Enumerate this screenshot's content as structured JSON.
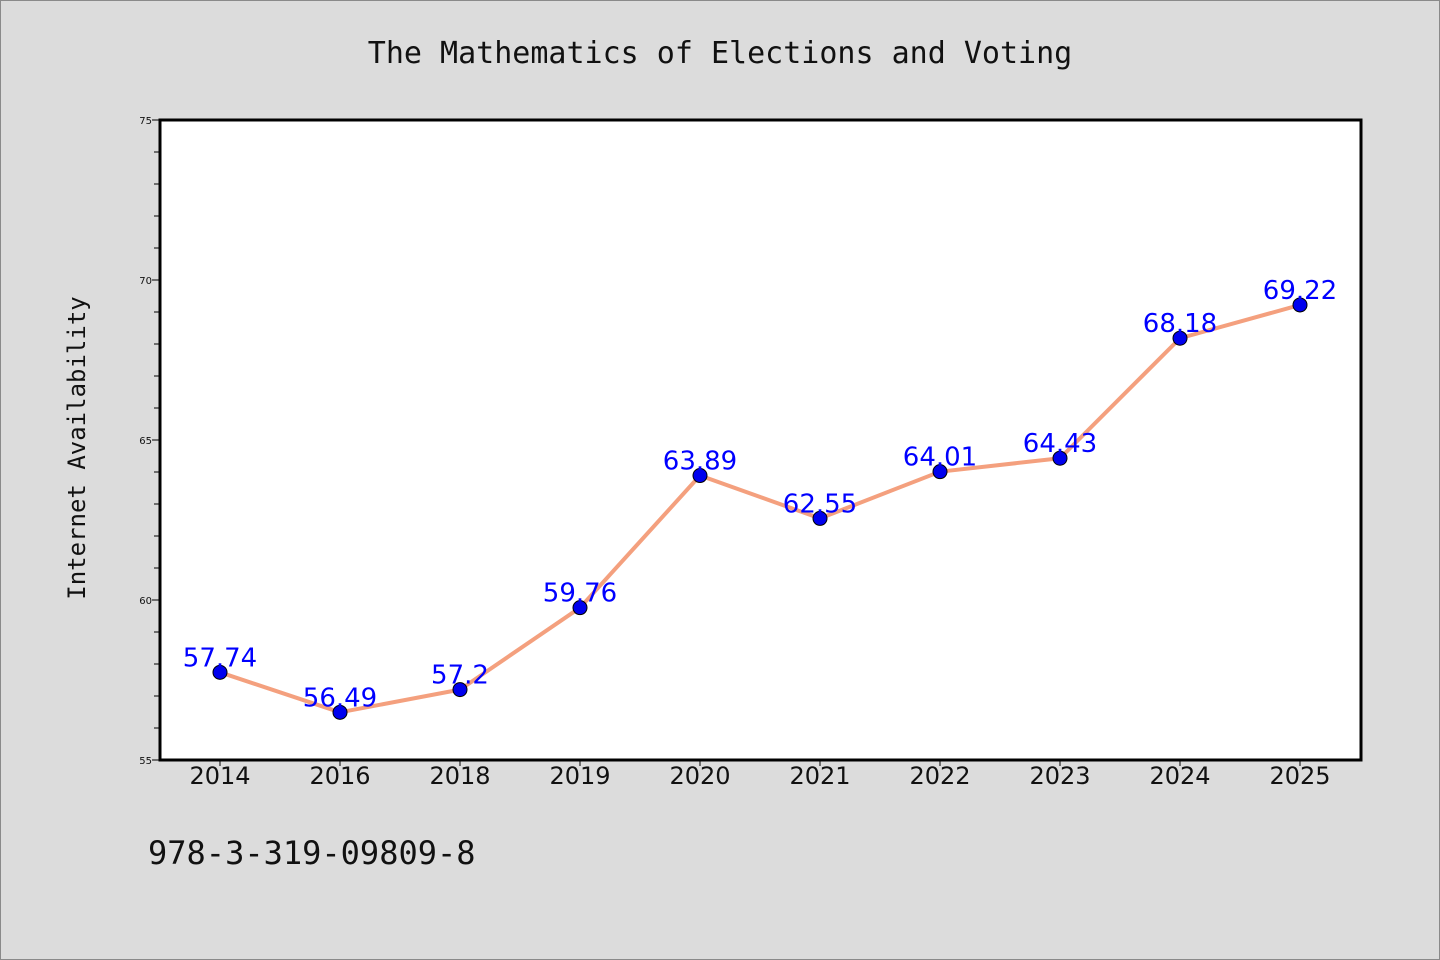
{
  "chart_data": {
    "type": "line",
    "title": "The Mathematics of Elections and Voting",
    "xlabel": "",
    "ylabel": "Internet Availability",
    "categories": [
      "2014",
      "2016",
      "2018",
      "2019",
      "2020",
      "2021",
      "2022",
      "2023",
      "2024",
      "2025"
    ],
    "series": [
      {
        "values": [
          57.74,
          56.49,
          57.2,
          59.76,
          63.89,
          62.55,
          64.01,
          64.43,
          68.18,
          69.22
        ],
        "data_labels": [
          "57.74",
          "56.49",
          "57.2",
          "59.76",
          "63.89",
          "62.55",
          "64.01",
          "64.43",
          "68.18",
          "69.22"
        ],
        "line_color": "#f4a07e",
        "marker_color": "#0000ee",
        "label_color": "#0000ff"
      }
    ],
    "ylim": [
      55,
      75
    ],
    "yticks": [
      "55",
      "60",
      "65",
      "70",
      "75"
    ],
    "grid": false,
    "legend": "none"
  },
  "footer": {
    "isbn": "978-3-319-09809-8"
  }
}
